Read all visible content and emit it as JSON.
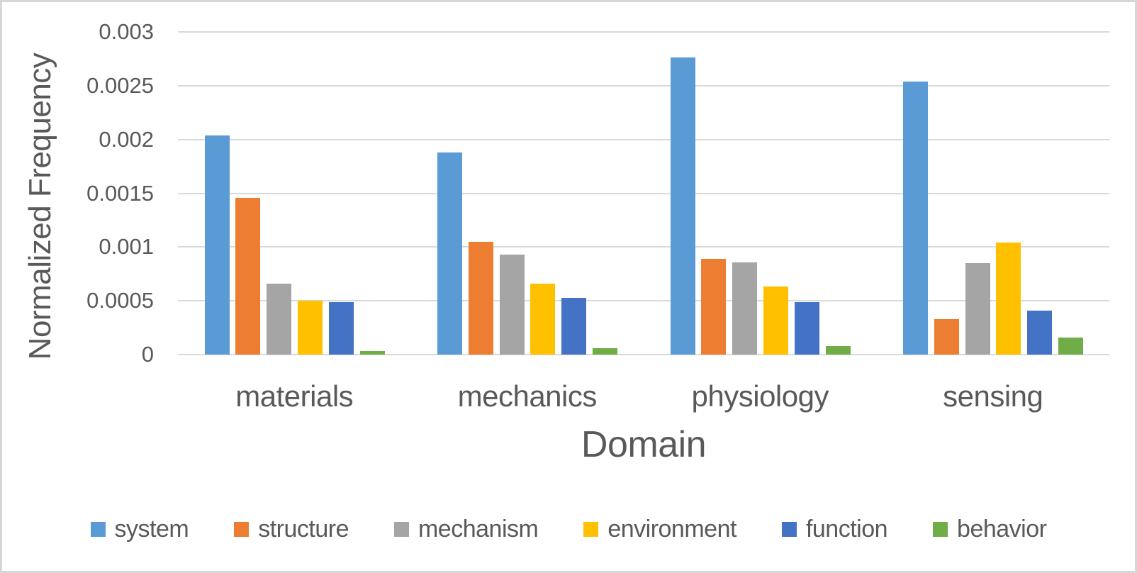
{
  "colors": {
    "text": "#595959",
    "gridline": "#d9d9d9",
    "frame_border": "#d7d7d7",
    "background": "#ffffff",
    "series_blue": "#5B9BD5",
    "series_orange": "#ED7D31",
    "series_gray": "#A5A5A5",
    "series_yellow": "#FFC000",
    "series_dark_blue": "#4472C4",
    "series_green": "#70AD47"
  },
  "chart_data": {
    "type": "bar",
    "title": "",
    "xlabel": "Domain",
    "ylabel": "Normalized Frequency",
    "categories": [
      "materials",
      "mechanics",
      "physiology",
      "sensing"
    ],
    "series": [
      {
        "name": "system",
        "color": "#5B9BD5",
        "values": [
          0.00204,
          0.00188,
          0.00276,
          0.00254
        ]
      },
      {
        "name": "structure",
        "color": "#ED7D31",
        "values": [
          0.00146,
          0.00105,
          0.00089,
          0.00033
        ]
      },
      {
        "name": "mechanism",
        "color": "#A5A5A5",
        "values": [
          0.00066,
          0.00093,
          0.00086,
          0.00085
        ]
      },
      {
        "name": "environment",
        "color": "#FFC000",
        "values": [
          0.0005,
          0.00066,
          0.00063,
          0.00104
        ]
      },
      {
        "name": "function",
        "color": "#4472C4",
        "values": [
          0.00049,
          0.00053,
          0.00049,
          0.00041
        ]
      },
      {
        "name": "behavior",
        "color": "#70AD47",
        "values": [
          3e-05,
          6e-05,
          8e-05,
          0.00016
        ]
      }
    ],
    "ylim": [
      0,
      0.003
    ],
    "yticks": [
      {
        "value": 0,
        "label": "0"
      },
      {
        "value": 0.0005,
        "label": "0.0005"
      },
      {
        "value": 0.001,
        "label": "0.001"
      },
      {
        "value": 0.0015,
        "label": "0.0015"
      },
      {
        "value": 0.002,
        "label": "0.002"
      },
      {
        "value": 0.0025,
        "label": "0.0025"
      },
      {
        "value": 0.003,
        "label": "0.003"
      }
    ],
    "grid": "horizontal",
    "legend_position": "bottom"
  }
}
